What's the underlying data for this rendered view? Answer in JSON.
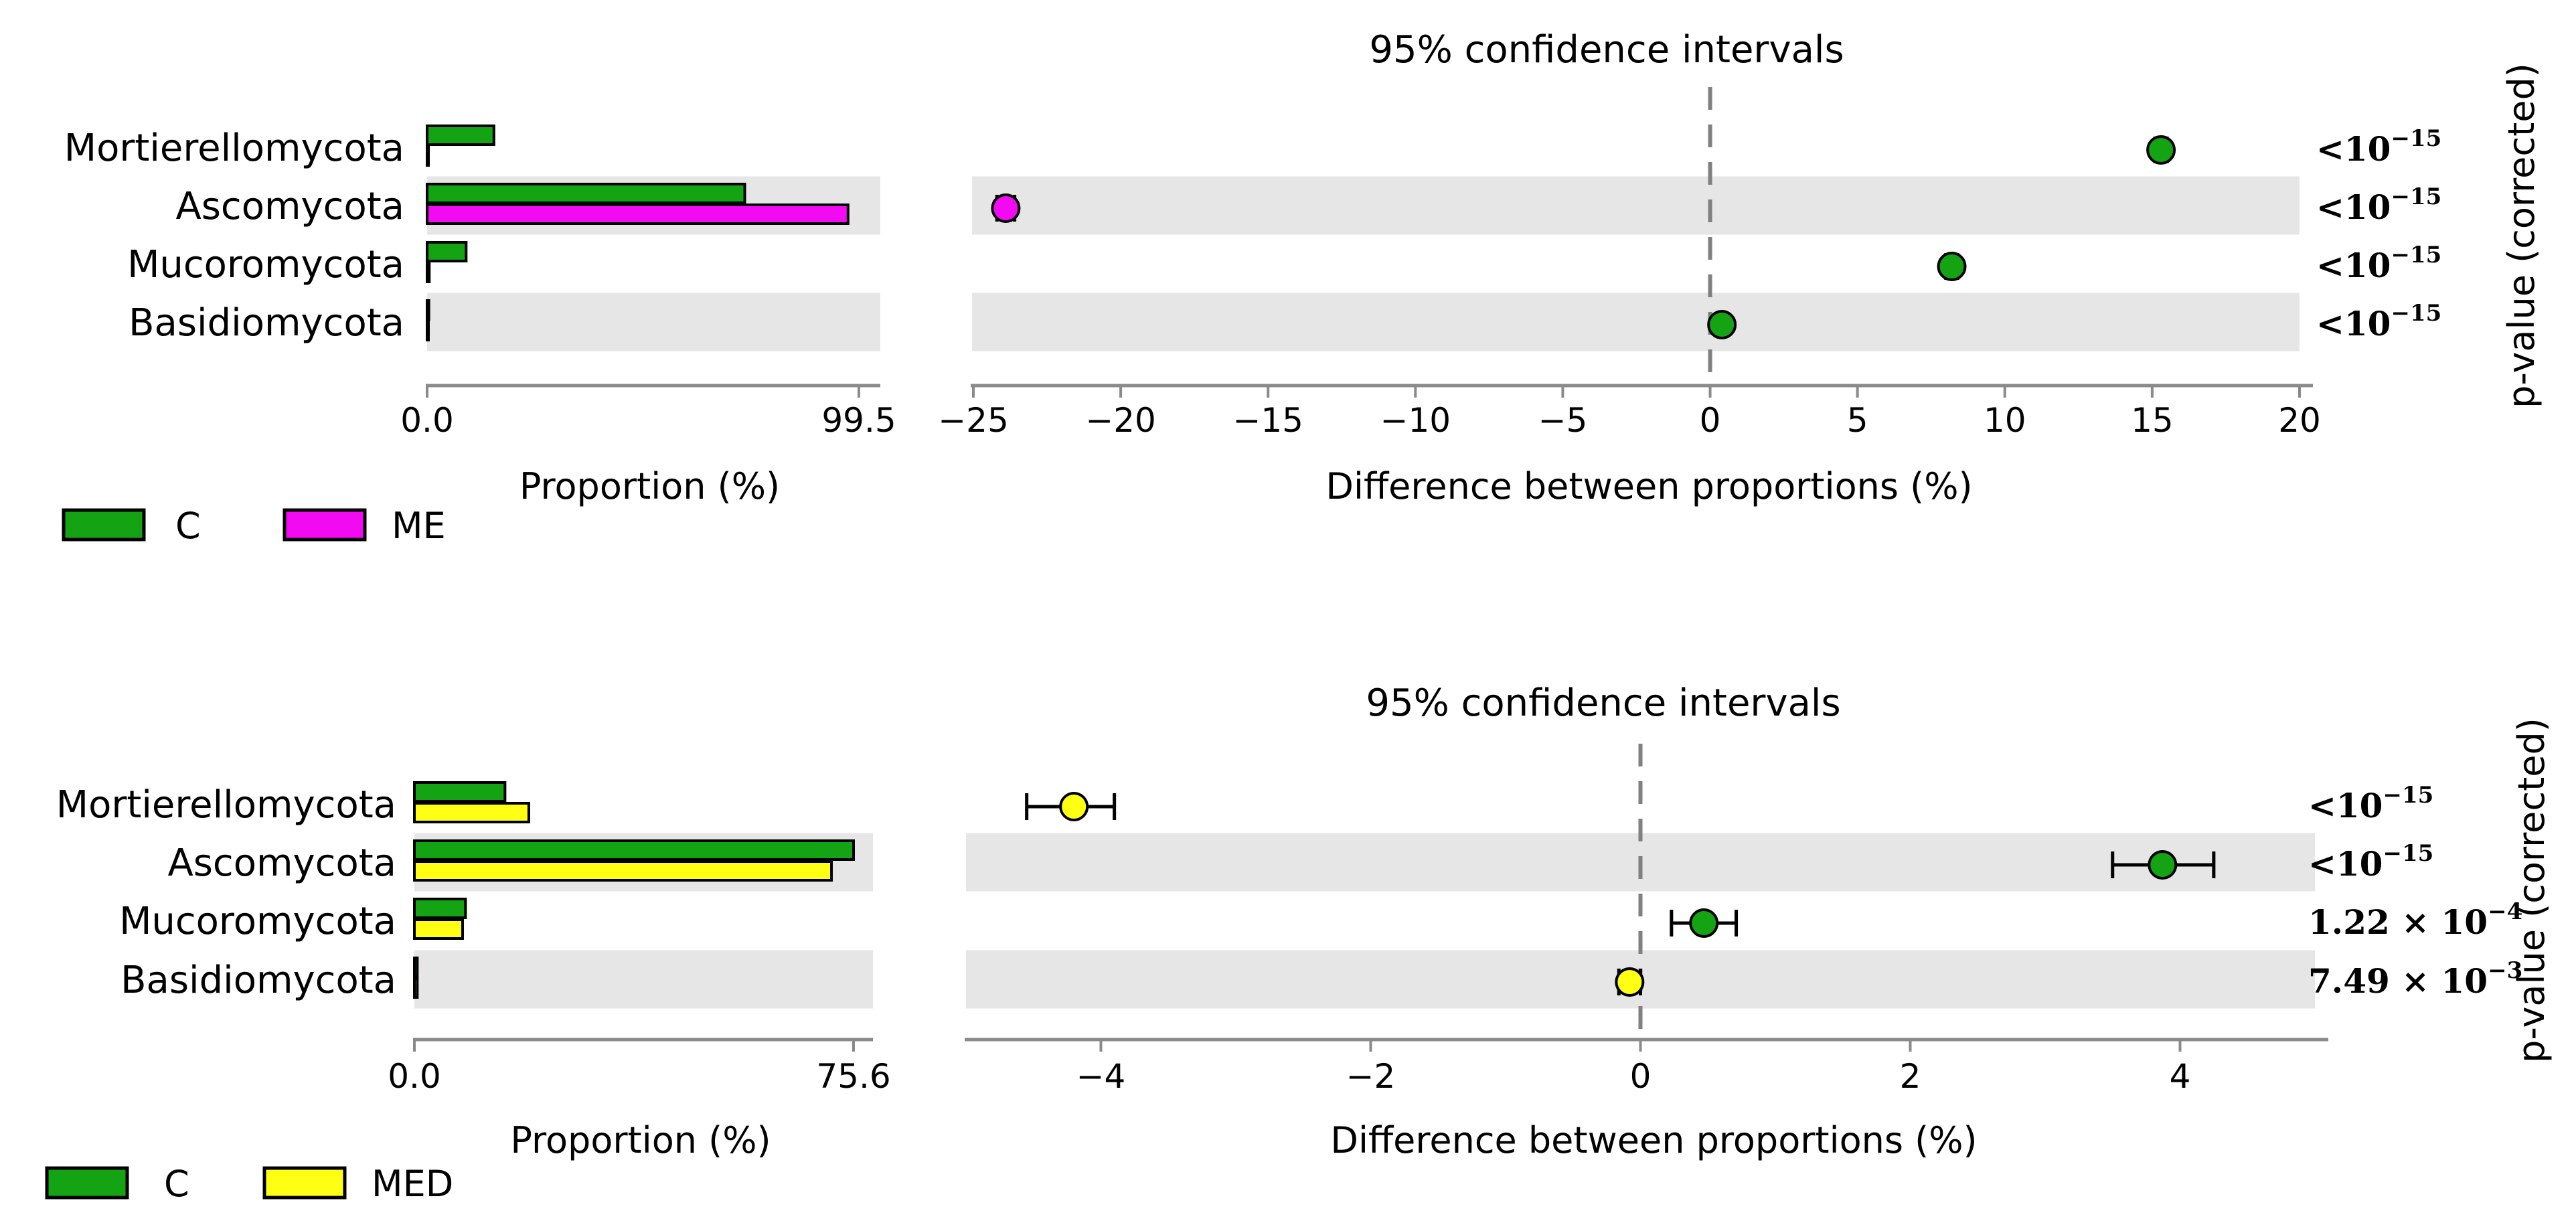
{
  "colors": {
    "C": "#13a313",
    "ME": "#f20af2",
    "MED": "#ffff14",
    "band": "#e6e6e6",
    "axis": "#8a8a8a"
  },
  "chart_data": [
    {
      "type": "bar+errorbar",
      "title": "95% confidence intervals",
      "categories": [
        "Mortierellomycota",
        "Ascomycota",
        "Mucoromycota",
        "Basidiomycota"
      ],
      "legend": [
        {
          "name": "C",
          "color": "#13a313"
        },
        {
          "name": "ME",
          "color": "#f20af2"
        }
      ],
      "proportion": {
        "xlabel": "Proportion (%)",
        "xlim": [
          0,
          99.5
        ],
        "tick_labels": [
          "0.0",
          "99.5"
        ],
        "series": [
          {
            "name": "C",
            "values": [
              15.4,
              73.2,
              9.0,
              0.4
            ]
          },
          {
            "name": "ME",
            "values": [
              0.1,
              97.0,
              0.5,
              0.2
            ]
          }
        ]
      },
      "difference": {
        "xlabel": "Difference between proportions (%)",
        "xlim": [
          -25,
          20
        ],
        "ticks": [
          -25,
          -20,
          -15,
          -10,
          -5,
          0,
          5,
          10,
          15,
          20
        ],
        "tick_labels": [
          "−25",
          "−20",
          "−15",
          "−10",
          "−5",
          "0",
          "5",
          "10",
          "15",
          "20"
        ],
        "values": [
          15.3,
          -23.9,
          8.2,
          0.4
        ],
        "ci_low": [
          15.1,
          -24.2,
          8.0,
          0.3
        ],
        "ci_high": [
          15.5,
          -23.6,
          8.4,
          0.5
        ],
        "favored": [
          "C",
          "ME",
          "C",
          "C"
        ]
      },
      "pvalue_label": "p-value (corrected)",
      "pvalues": [
        "<10",
        "<10",
        "<10",
        "<10"
      ],
      "pvalue_exps": [
        "−15",
        "−15",
        "−15",
        "−15"
      ]
    },
    {
      "type": "bar+errorbar",
      "title": "95% confidence intervals",
      "categories": [
        "Mortierellomycota",
        "Ascomycota",
        "Mucoromycota",
        "Basidiomycota"
      ],
      "legend": [
        {
          "name": "C",
          "color": "#13a313"
        },
        {
          "name": "MED",
          "color": "#ffff14"
        }
      ],
      "proportion": {
        "xlabel": "Proportion (%)",
        "xlim": [
          0,
          75.6
        ],
        "tick_labels": [
          "0.0",
          "75.6"
        ],
        "series": [
          {
            "name": "C",
            "values": [
              15.6,
              75.6,
              8.8,
              0.5
            ]
          },
          {
            "name": "MED",
            "values": [
              19.7,
              71.8,
              8.3,
              0.5
            ]
          }
        ]
      },
      "difference": {
        "xlabel": "Difference between proportions (%)",
        "xlim": [
          -5,
          5
        ],
        "ticks": [
          -4,
          -2,
          0,
          2,
          4
        ],
        "tick_labels": [
          "−4",
          "−2",
          "0",
          "2",
          "4"
        ],
        "values": [
          -4.2,
          3.87,
          0.47,
          -0.08
        ],
        "ci_low": [
          -4.55,
          3.5,
          0.23,
          -0.16
        ],
        "ci_high": [
          -3.9,
          4.25,
          0.71,
          0.0
        ],
        "favored": [
          "MED",
          "C",
          "C",
          "MED"
        ]
      },
      "pvalue_label": "p-value (corrected)",
      "pvalues": [
        "<10",
        "<10",
        "1.22 × 10",
        "7.49 × 10"
      ],
      "pvalue_exps": [
        "−15",
        "−15",
        "−4",
        "−3"
      ]
    }
  ]
}
